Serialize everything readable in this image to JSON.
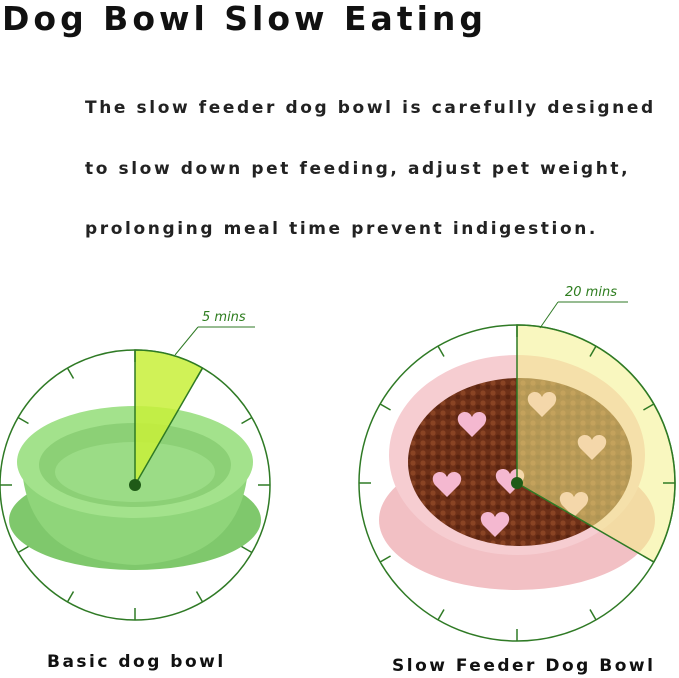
{
  "header": {
    "title": "Dog Bowl Slow Eating"
  },
  "description": {
    "lines": [
      "The slow feeder dog bowl is carefully designed",
      "to slow down pet feeding, adjust pet weight,",
      "prolonging meal time prevent indigestion."
    ]
  },
  "bowls": [
    {
      "label": "Basic dog bowl",
      "time": "5 mins"
    },
    {
      "label": "Slow Feeder Dog Bowl",
      "time": "20 mins"
    }
  ]
}
